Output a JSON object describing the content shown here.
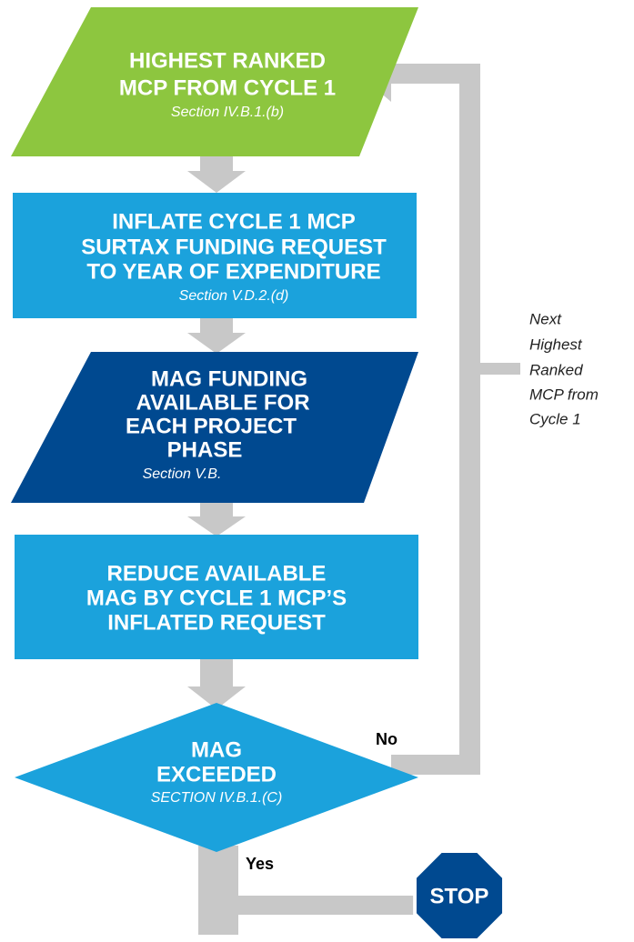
{
  "nodes": [
    {
      "lines": [
        "HIGHEST RANKED",
        "MCP FROM CYCLE 1"
      ],
      "section": "Section IV.B.1.(b)"
    },
    {
      "lines": [
        "INFLATE CYCLE 1 MCP",
        "SURTAX FUNDING REQUEST",
        "TO YEAR OF EXPENDITURE"
      ],
      "section": "Section V.D.2.(d)"
    },
    {
      "lines": [
        "MAG FUNDING",
        "AVAILABLE FOR",
        "EACH PROJECT",
        "PHASE"
      ],
      "section": "Section V.B."
    },
    {
      "lines": [
        "REDUCE AVAILABLE",
        "MAG BY CYCLE 1 MCP’S",
        "INFLATED REQUEST"
      ]
    },
    {
      "lines": [
        "MAG",
        "EXCEEDED"
      ],
      "section": "SECTION IV.B.1.(C)"
    },
    {
      "lines": [
        "STOP"
      ]
    }
  ],
  "edges": {
    "no": "No",
    "yes": "Yes",
    "loop": [
      "Next",
      "Highest",
      "Ranked",
      "MCP from",
      "Cycle 1"
    ]
  }
}
